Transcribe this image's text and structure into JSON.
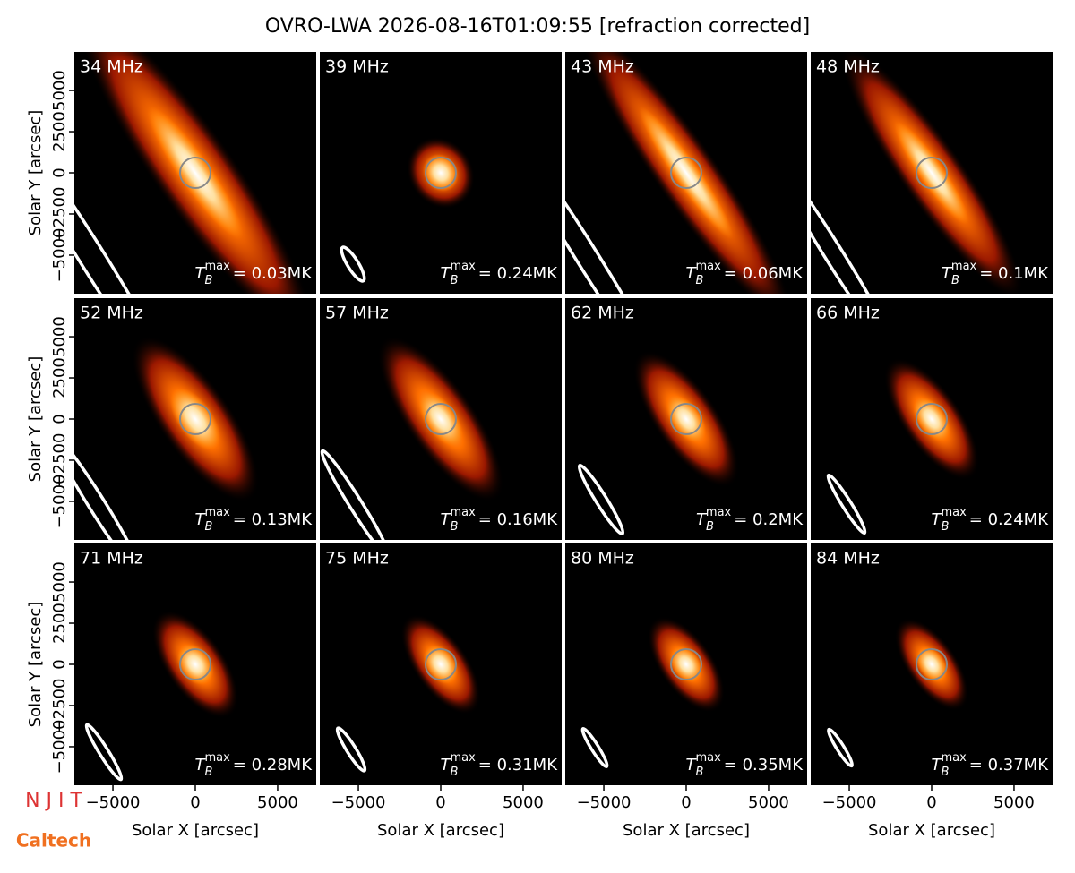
{
  "title": "OVRO-LWA 2026-08-16T01:09:55 [refraction corrected]",
  "axes": {
    "xlabel": "Solar X [arcsec]",
    "ylabel": "Solar Y [arcsec]",
    "xlim": [
      -7340,
      7340
    ],
    "ylim": [
      -7340,
      7340
    ],
    "xticks": [
      {
        "value": -5000,
        "label": "−5000"
      },
      0,
      5000
    ],
    "yticks": [
      {
        "value": -5000,
        "label": "−5000"
      },
      {
        "value": -2500,
        "label": "−2500"
      },
      0,
      2500,
      5000
    ]
  },
  "annotation_symbol": {
    "base": "T",
    "sub": "B",
    "sup": "max"
  },
  "logos": [
    "N J I T",
    "Caltech"
  ],
  "chart_data": [
    {
      "type": "image",
      "title": "34 MHz",
      "annotation": "= 0.03MK"
    },
    {
      "type": "image",
      "title": "39 MHz",
      "annotation": "= 0.24MK"
    },
    {
      "type": "image",
      "title": "43 MHz",
      "annotation": "= 0.06MK"
    },
    {
      "type": "image",
      "title": "48 MHz",
      "annotation": "= 0.1MK"
    },
    {
      "type": "image",
      "title": "52 MHz",
      "annotation": "= 0.13MK"
    },
    {
      "type": "image",
      "title": "57 MHz",
      "annotation": "= 0.16MK"
    },
    {
      "type": "image",
      "title": "62 MHz",
      "annotation": "= 0.2MK"
    },
    {
      "type": "image",
      "title": "66 MHz",
      "annotation": "= 0.24MK"
    },
    {
      "type": "image",
      "title": "71 MHz",
      "annotation": "= 0.28MK"
    },
    {
      "type": "image",
      "title": "75 MHz",
      "annotation": "= 0.31MK"
    },
    {
      "type": "image",
      "title": "80 MHz",
      "annotation": "= 0.35MK"
    },
    {
      "type": "image",
      "title": "84 MHz",
      "annotation": "= 0.37MK"
    }
  ]
}
